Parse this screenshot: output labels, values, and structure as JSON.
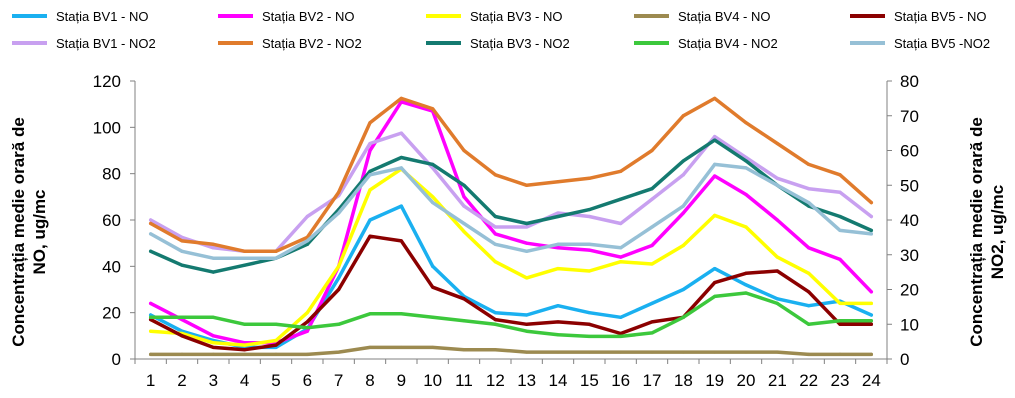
{
  "chart_data": {
    "type": "line",
    "x": [
      1,
      2,
      3,
      4,
      5,
      6,
      7,
      8,
      9,
      10,
      11,
      12,
      13,
      14,
      15,
      16,
      17,
      18,
      19,
      20,
      21,
      22,
      23,
      24
    ],
    "ylabel_left_line1": "Concentrația medie orară de",
    "ylabel_left_line2": "NO, ug/mc",
    "ylabel_right_line1": "Concentrația medie orară de",
    "ylabel_right_line2": "NO2, ug/mc",
    "ylim_left": [
      0,
      120
    ],
    "ylim_right": [
      0,
      80
    ],
    "yticks_left": [
      0,
      20,
      40,
      60,
      80,
      100,
      120
    ],
    "yticks_right": [
      0,
      10,
      20,
      30,
      40,
      50,
      60,
      70,
      80
    ],
    "grid": false,
    "legend_position": "top",
    "series": [
      {
        "name": "Stația BV1 - NO",
        "axis": "left",
        "color": "#1ab0f0",
        "values": [
          19,
          12,
          8,
          5,
          5,
          13,
          35,
          60,
          66,
          40,
          27,
          20,
          19,
          23,
          20,
          18,
          24,
          30,
          39,
          32,
          26,
          23,
          25,
          19
        ]
      },
      {
        "name": "Stația BV2 - NO",
        "axis": "left",
        "color": "#ff00ff",
        "values": [
          24,
          17,
          10,
          7,
          7,
          12,
          40,
          90,
          111,
          107,
          70,
          54,
          50,
          48,
          47,
          44,
          49,
          63,
          79,
          71,
          60,
          48,
          43,
          29
        ]
      },
      {
        "name": "Stația BV3 - NO",
        "axis": "left",
        "color": "#ffff00",
        "values": [
          12,
          11,
          7,
          6,
          8,
          20,
          40,
          73,
          82,
          70,
          55,
          42,
          35,
          39,
          38,
          42,
          41,
          49,
          62,
          57,
          44,
          37,
          24,
          24
        ]
      },
      {
        "name": "Stația BV4 - NO",
        "axis": "left",
        "color": "#9c8a50",
        "values": [
          2,
          2,
          2,
          2,
          2,
          2,
          3,
          5,
          5,
          5,
          4,
          4,
          3,
          3,
          3,
          3,
          3,
          3,
          3,
          3,
          3,
          2,
          2,
          2
        ]
      },
      {
        "name": "Stația BV5 - NO",
        "axis": "left",
        "color": "#8b0000",
        "values": [
          17,
          10,
          5,
          4,
          6,
          16,
          30,
          53,
          51,
          31,
          26,
          17,
          15,
          16,
          15,
          11,
          16,
          18,
          33,
          37,
          38,
          29,
          15,
          15
        ]
      },
      {
        "name": "Stația BV1 - NO2",
        "axis": "right",
        "color": "#c8a0f0",
        "values": [
          40,
          35,
          32,
          31,
          31,
          41,
          47,
          62,
          65,
          55,
          44,
          38,
          38,
          42,
          41,
          39,
          46,
          53,
          64,
          58,
          52,
          49,
          48,
          41
        ]
      },
      {
        "name": "Stația BV2 - NO2",
        "axis": "right",
        "color": "#e07b2c",
        "values": [
          39,
          34,
          33,
          31,
          31,
          35,
          48,
          68,
          75,
          72,
          60,
          53,
          50,
          51,
          52,
          54,
          60,
          70,
          75,
          68,
          62,
          56,
          53,
          45
        ]
      },
      {
        "name": "Stația BV3 - NO2",
        "axis": "right",
        "color": "#147a70",
        "values": [
          31,
          27,
          25,
          27,
          29,
          33,
          43,
          54,
          58,
          56,
          50,
          41,
          39,
          41,
          43,
          46,
          49,
          57,
          63,
          57,
          50,
          44,
          41,
          37
        ]
      },
      {
        "name": "Stația BV4 - NO2",
        "axis": "right",
        "color": "#3cc83c",
        "values": [
          12,
          12,
          12,
          10,
          10,
          9,
          10,
          13,
          13,
          12,
          11,
          10,
          8,
          7,
          6.5,
          6.5,
          7.5,
          12,
          18,
          19,
          16,
          10,
          11,
          11
        ]
      },
      {
        "name": "Stația BV5  -NO2",
        "axis": "right",
        "color": "#96c0d6",
        "values": [
          36,
          31,
          29,
          29,
          29,
          34,
          42,
          53,
          55,
          45,
          39,
          33,
          31,
          33,
          33,
          32,
          38,
          44,
          56,
          55,
          50,
          45,
          37,
          36
        ]
      }
    ]
  }
}
